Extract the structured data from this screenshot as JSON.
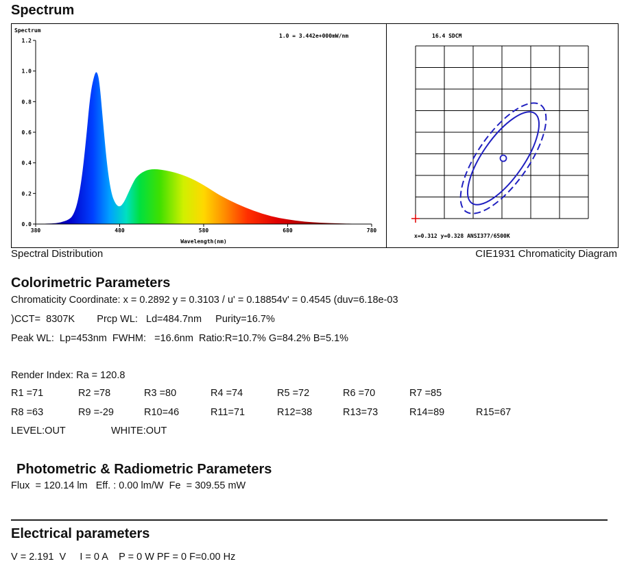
{
  "spectrum_section": {
    "title": "Spectrum",
    "chart_data": {
      "type": "area",
      "title": "Spectrum",
      "scale_note": "1.0 = 3.442e+000mW/nm",
      "xlabel": "Wavelength(nm)",
      "xlim": [
        380,
        780
      ],
      "ylim": [
        0,
        1.2
      ],
      "x_ticks": [
        "380",
        "480",
        "580",
        "680",
        "780"
      ],
      "y_ticks": [
        "0.0",
        "0.2",
        "0.4",
        "0.6",
        "0.8",
        "1.0",
        "1.2"
      ],
      "x": [
        380,
        400,
        410,
        420,
        425,
        430,
        435,
        440,
        445,
        450,
        453,
        456,
        460,
        465,
        470,
        475,
        480,
        485,
        490,
        495,
        500,
        510,
        520,
        530,
        540,
        550,
        560,
        570,
        580,
        590,
        600,
        620,
        640,
        660,
        680,
        700,
        720,
        740,
        760,
        780
      ],
      "y": [
        0.0,
        0.003,
        0.01,
        0.03,
        0.06,
        0.14,
        0.3,
        0.55,
        0.85,
        0.98,
        1.0,
        0.93,
        0.68,
        0.38,
        0.2,
        0.13,
        0.11,
        0.14,
        0.2,
        0.26,
        0.31,
        0.35,
        0.36,
        0.355,
        0.345,
        0.33,
        0.31,
        0.285,
        0.255,
        0.22,
        0.185,
        0.13,
        0.085,
        0.05,
        0.03,
        0.015,
        0.008,
        0.004,
        0.002,
        0.0
      ],
      "caption": "Spectral Distribution"
    }
  },
  "cie": {
    "sdcm": "16.4 SDCM",
    "coords": "x=0.312 y=0.328 ANSI377/6500K",
    "caption": "CIE1931 Chromaticity Diagram"
  },
  "colorimetric": {
    "title": "Colorimetric Parameters",
    "line1": "Chromaticity Coordinate: x = 0.2892 y = 0.3103 / u' = 0.18854v' = 0.4545 (duv=6.18e-03",
    "line2": ")CCT=  8307K        Prcp WL:   Ld=484.7nm     Purity=16.7%",
    "line3": "Peak WL:  Lp=453nm  FWHM:   =16.6nm  Ratio:R=10.7% G=84.2% B=5.1%"
  },
  "render": {
    "ra": "Render Index: Ra = 120.8",
    "row1": [
      "R1 =71",
      "R2 =78",
      "R3 =80",
      "R4 =74",
      "R5 =72",
      "R6 =70",
      "R7 =85"
    ],
    "row2": [
      "R8 =63",
      "R9 =-29",
      "R10=46",
      "R11=71",
      "R12=38",
      "R13=73",
      "R14=89",
      "R15=67"
    ],
    "level": "LEVEL:OUT",
    "white": "WHITE:OUT"
  },
  "photometric": {
    "title": "Photometric & Radiometric Parameters",
    "line": "Flux  = 120.14 lm   Eff. : 0.00 lm/W  Fe  = 309.55 mW"
  },
  "electrical": {
    "title": "Electrical parameters",
    "line": "V = 2.191  V     I = 0 A    P = 0 W PF = 0 F=0.00 Hz"
  }
}
